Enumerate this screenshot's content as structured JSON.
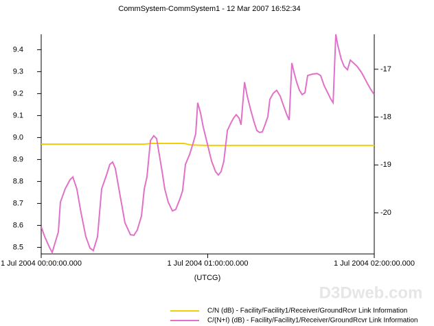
{
  "chart_data": {
    "type": "line",
    "title": "CommSystem-CommSystem1 - 12 Mar 2007 16:52:34",
    "x_label": "(UTCG)",
    "watermark": "D3Dweb.com",
    "xlim": [
      0,
      2
    ],
    "xticks": [
      {
        "value": 0,
        "label": "1 Jul 2004 00:00:00.000"
      },
      {
        "value": 1,
        "label": "1 Jul 2004 01:00:00.000"
      },
      {
        "value": 2,
        "label": "1 Jul 2004 02:00:00.000"
      }
    ],
    "ylim": [
      8.47,
      9.47
    ],
    "yticks": [
      8.5,
      8.6,
      8.7,
      8.8,
      8.9,
      {
        "value": 9,
        "label": "9.0"
      },
      9.1,
      9.2,
      9.3,
      9.4
    ],
    "y2lim": [
      -20.86,
      -16.27
    ],
    "y2ticks": [
      -20,
      -19,
      -18,
      -17
    ],
    "series": [
      {
        "name": "C/N (dB) - Facility/Facility1/Receiver/GroundRcvr Link Information",
        "color": "#f0d000",
        "axis": "y",
        "x": [
          0,
          0.619,
          0.66,
          0.858,
          0.899,
          0.99,
          2
        ],
        "values": [
          8.97,
          8.97,
          8.973,
          8.973,
          8.966,
          8.964,
          8.964
        ]
      },
      {
        "name": "C/(N+I) (dB) - Facility/Facility1/Receiver/GroundRcvr Link Information",
        "color": "#e070c8",
        "axis": "y2",
        "x": [
          0,
          0.021,
          0.049,
          0.066,
          0.082,
          0.103,
          0.115,
          0.144,
          0.173,
          0.19,
          0.214,
          0.239,
          0.268,
          0.293,
          0.313,
          0.338,
          0.363,
          0.392,
          0.412,
          0.429,
          0.445,
          0.474,
          0.503,
          0.536,
          0.557,
          0.577,
          0.602,
          0.619,
          0.635,
          0.656,
          0.676,
          0.693,
          0.709,
          0.726,
          0.742,
          0.763,
          0.788,
          0.808,
          0.833,
          0.849,
          0.866,
          0.891,
          0.911,
          0.928,
          0.94,
          0.957,
          0.973,
          0.998,
          1.023,
          1.047,
          1.064,
          1.08,
          1.097,
          1.118,
          1.138,
          1.155,
          1.171,
          1.188,
          1.2,
          1.221,
          1.237,
          1.258,
          1.278,
          1.295,
          1.311,
          1.328,
          1.344,
          1.361,
          1.373,
          1.394,
          1.414,
          1.435,
          1.456,
          1.476,
          1.489,
          1.505,
          1.518,
          1.534,
          1.551,
          1.567,
          1.584,
          1.6,
          1.629,
          1.658,
          1.678,
          1.699,
          1.72,
          1.74,
          1.753,
          1.769,
          1.781,
          1.802,
          1.819,
          1.839,
          1.856,
          1.876,
          1.897,
          1.922,
          1.938,
          1.959,
          1.979,
          2
        ],
        "values": [
          -20.29,
          -20.5,
          -20.72,
          -20.83,
          -20.64,
          -20.4,
          -19.78,
          -19.5,
          -19.31,
          -19.25,
          -19.5,
          -20,
          -20.5,
          -20.74,
          -20.79,
          -20.5,
          -19.5,
          -19.21,
          -18.99,
          -18.94,
          -19.07,
          -19.64,
          -20.21,
          -20.46,
          -20.47,
          -20.36,
          -20.07,
          -19.5,
          -19.25,
          -18.49,
          -18.39,
          -18.45,
          -18.78,
          -19.14,
          -19.5,
          -19.78,
          -19.96,
          -19.93,
          -19.71,
          -19.54,
          -18.99,
          -18.78,
          -18.56,
          -18.35,
          -17.7,
          -17.92,
          -18.21,
          -18.56,
          -18.92,
          -19.14,
          -19.21,
          -19.14,
          -18.92,
          -18.28,
          -18.13,
          -18.02,
          -17.95,
          -18.02,
          -18.16,
          -17.27,
          -17.56,
          -17.85,
          -18.1,
          -18.28,
          -18.32,
          -18.31,
          -18.16,
          -17.99,
          -17.63,
          -17.5,
          -17.44,
          -17.56,
          -17.77,
          -17.96,
          -18.06,
          -16.87,
          -17.06,
          -17.27,
          -17.44,
          -17.53,
          -17.49,
          -17.13,
          -17.1,
          -17.09,
          -17.13,
          -17.34,
          -17.49,
          -17.63,
          -17.7,
          -16.27,
          -16.5,
          -16.79,
          -16.94,
          -17.01,
          -16.81,
          -16.87,
          -16.94,
          -17.06,
          -17.16,
          -17.3,
          -17.42,
          -17.53
        ]
      }
    ]
  }
}
